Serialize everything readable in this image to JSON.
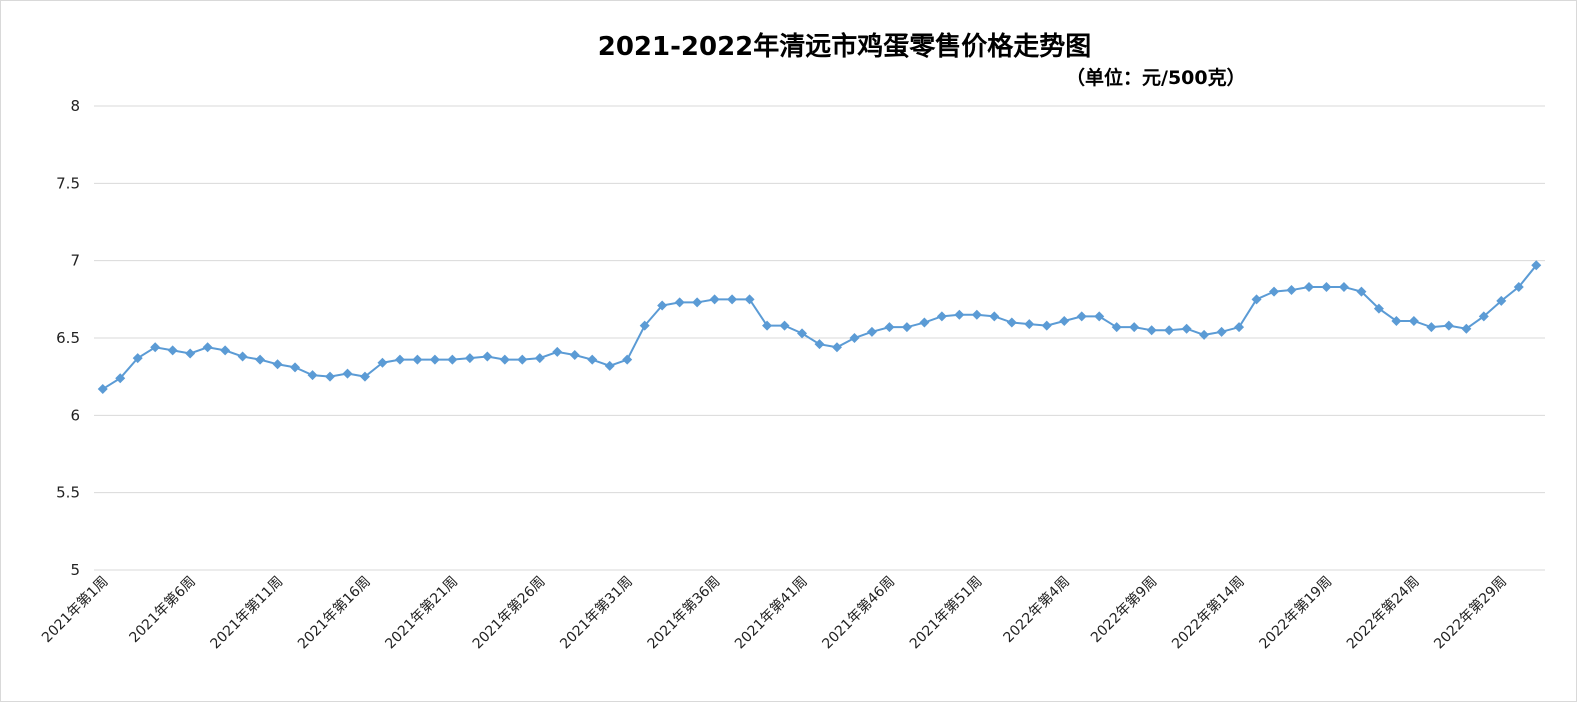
{
  "chart_data": {
    "type": "line",
    "title": "2021-2022年清远市鸡蛋零售价格走势图",
    "subtitle": "（单位：元/500克）",
    "xlabel": "",
    "ylabel": "",
    "ylim": [
      5,
      8
    ],
    "yticks": [
      "5",
      "5.5",
      "6",
      "6.5",
      "7",
      "7.5",
      "8"
    ],
    "grid": true,
    "legend": "none",
    "series_color": "#5b9bd5",
    "x": [
      "2021年第1周",
      "2021年第2周",
      "2021年第3周",
      "2021年第4周",
      "2021年第5周",
      "2021年第6周",
      "2021年第7周",
      "2021年第8周",
      "2021年第9周",
      "2021年第10周",
      "2021年第11周",
      "2021年第12周",
      "2021年第13周",
      "2021年第14周",
      "2021年第15周",
      "2021年第16周",
      "2021年第17周",
      "2021年第18周",
      "2021年第19周",
      "2021年第20周",
      "2021年第21周",
      "2021年第22周",
      "2021年第23周",
      "2021年第24周",
      "2021年第25周",
      "2021年第26周",
      "2021年第27周",
      "2021年第28周",
      "2021年第29周",
      "2021年第30周",
      "2021年第31周",
      "2021年第32周",
      "2021年第33周",
      "2021年第34周",
      "2021年第35周",
      "2021年第36周",
      "2021年第37周",
      "2021年第38周",
      "2021年第39周",
      "2021年第40周",
      "2021年第41周",
      "2021年第42周",
      "2021年第43周",
      "2021年第44周",
      "2021年第45周",
      "2021年第46周",
      "2021年第47周",
      "2021年第48周",
      "2021年第49周",
      "2021年第50周",
      "2021年第51周",
      "2021年第52周",
      "2022年第1周",
      "2022年第2周",
      "2022年第3周",
      "2022年第4周",
      "2022年第5周",
      "2022年第6周",
      "2022年第7周",
      "2022年第8周",
      "2022年第9周",
      "2022年第10周",
      "2022年第11周",
      "2022年第12周",
      "2022年第13周",
      "2022年第14周",
      "2022年第15周",
      "2022年第16周",
      "2022年第17周",
      "2022年第18周",
      "2022年第19周",
      "2022年第20周",
      "2022年第21周",
      "2022年第22周",
      "2022年第23周",
      "2022年第24周",
      "2022年第25周",
      "2022年第26周",
      "2022年第27周",
      "2022年第28周",
      "2022年第29周",
      "2022年第30周",
      "2022年第31周"
    ],
    "xtick_labels": [
      "2021年第1周",
      "2021年第6周",
      "2021年第11周",
      "2021年第16周",
      "2021年第21周",
      "2021年第26周",
      "2021年第31周",
      "2021年第36周",
      "2021年第41周",
      "2021年第46周",
      "2021年第51周",
      "2022年第4周",
      "2022年第9周",
      "2022年第14周",
      "2022年第19周",
      "2022年第24周",
      "2022年第29周"
    ],
    "series": [
      {
        "values": [
          6.17,
          6.24,
          6.37,
          6.44,
          6.42,
          6.4,
          6.44,
          6.42,
          6.38,
          6.36,
          6.33,
          6.31,
          6.26,
          6.25,
          6.27,
          6.25,
          6.34,
          6.36,
          6.36,
          6.36,
          6.36,
          6.37,
          6.38,
          6.36,
          6.36,
          6.37,
          6.41,
          6.39,
          6.36,
          6.32,
          6.36,
          6.58,
          6.71,
          6.73,
          6.73,
          6.75,
          6.75,
          6.75,
          6.58,
          6.58,
          6.53,
          6.46,
          6.44,
          6.5,
          6.54,
          6.57,
          6.57,
          6.6,
          6.64,
          6.65,
          6.65,
          6.64,
          6.6,
          6.59,
          6.58,
          6.61,
          6.64,
          6.64,
          6.57,
          6.57,
          6.55,
          6.55,
          6.56,
          6.52,
          6.54,
          6.57,
          6.75,
          6.8,
          6.81,
          6.83,
          6.83,
          6.83,
          6.8,
          6.69,
          6.61,
          6.61,
          6.57,
          6.58,
          6.56,
          6.64,
          6.74,
          6.83,
          6.97
        ]
      }
    ]
  }
}
